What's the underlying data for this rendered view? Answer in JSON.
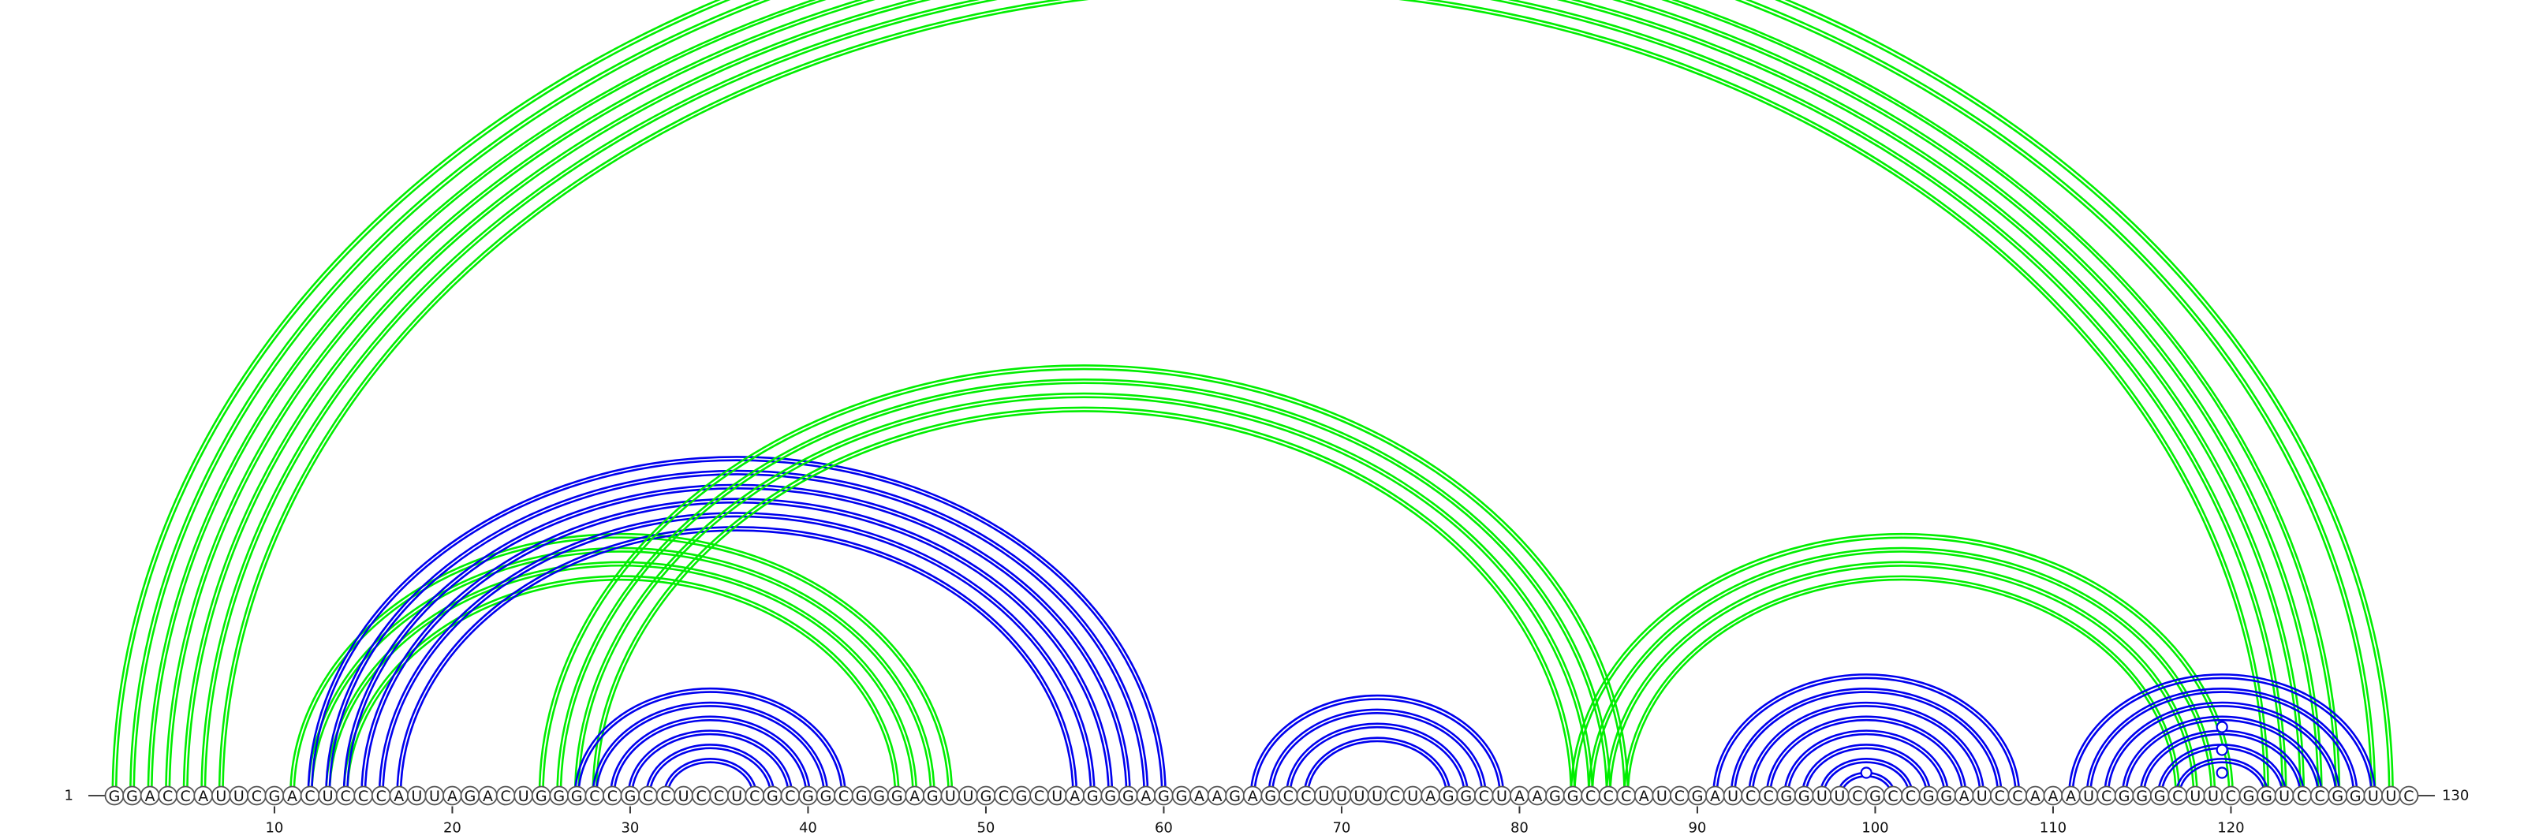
{
  "sequence": "GGACCAUUCGACUCCCAUUAGACUGGGCCGCCUCCUCGCGGCGGGAGUUGCGCUAGGGAGGAAGAGCCUUUUCUAGGCUAAGGCCCAUCGAUCCGGUUCGCCGGAUCCAAAUCGGGCUUCGGUCCGGUUC",
  "start_label": "1",
  "end_label": "130",
  "tick_labels": [
    "10",
    "20",
    "30",
    "40",
    "50",
    "60",
    "70",
    "80",
    "90",
    "100",
    "110",
    "120"
  ],
  "colors": {
    "green": "#00ee00",
    "blue": "#0000ee"
  },
  "chart_data": {
    "type": "arc-diagram",
    "length": 130,
    "helices": [
      {
        "color": "green",
        "pairs": [
          [
            1,
            129
          ],
          [
            2,
            128
          ]
        ],
        "marker": [
          1,
          129
        ]
      },
      {
        "color": "green",
        "pairs": [
          [
            3,
            126
          ],
          [
            4,
            125
          ],
          [
            5,
            124
          ],
          [
            6,
            123
          ],
          [
            7,
            122
          ]
        ]
      },
      {
        "color": "green",
        "pairs": [
          [
            11,
            48
          ],
          [
            12,
            47
          ],
          [
            13,
            46
          ],
          [
            14,
            45
          ]
        ]
      },
      {
        "color": "blue",
        "pairs": [
          [
            12,
            60
          ],
          [
            13,
            59
          ],
          [
            14,
            58
          ],
          [
            15,
            57
          ],
          [
            16,
            56
          ],
          [
            17,
            55
          ]
        ]
      },
      {
        "color": "green",
        "pairs": [
          [
            25,
            86
          ],
          [
            26,
            85
          ],
          [
            27,
            84
          ],
          [
            28,
            83
          ]
        ]
      },
      {
        "color": "blue",
        "pairs": [
          [
            27,
            42
          ],
          [
            28,
            41
          ],
          [
            29,
            40
          ],
          [
            30,
            39
          ],
          [
            31,
            38
          ],
          [
            32,
            37
          ]
        ]
      },
      {
        "color": "blue",
        "pairs": [
          [
            65,
            79
          ],
          [
            66,
            78
          ],
          [
            67,
            77
          ],
          [
            68,
            76
          ]
        ]
      },
      {
        "color": "green",
        "pairs": [
          [
            83,
            120
          ],
          [
            84,
            119
          ],
          [
            85,
            118
          ],
          [
            86,
            117
          ]
        ]
      },
      {
        "color": "blue",
        "pairs": [
          [
            91,
            108
          ],
          [
            92,
            107
          ],
          [
            93,
            106
          ],
          [
            94,
            105
          ],
          [
            95,
            104
          ],
          [
            96,
            103
          ],
          [
            97,
            102
          ],
          [
            98,
            101
          ]
        ]
      },
      {
        "color": "blue",
        "pairs": [
          [
            111,
            128
          ],
          [
            112,
            127
          ],
          [
            113,
            126
          ],
          [
            114,
            125
          ],
          [
            115,
            124
          ],
          [
            116,
            123
          ],
          [
            117,
            122
          ]
        ]
      }
    ],
    "markers": [
      {
        "color": "blue",
        "position": 99.5,
        "level": 1
      },
      {
        "color": "blue",
        "position": 119.5,
        "level": 1
      },
      {
        "color": "blue",
        "position": 119.5,
        "level": 2
      },
      {
        "color": "blue",
        "position": 119.5,
        "level": 3
      }
    ]
  }
}
